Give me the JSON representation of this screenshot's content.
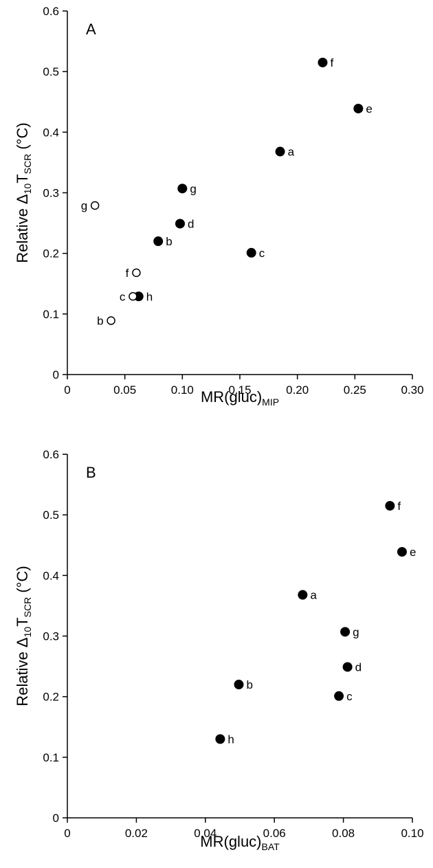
{
  "chart_data": [
    {
      "type": "scatter",
      "panel_label": "A",
      "xlabel": {
        "main": "MR(gluc)",
        "sub": "MIP"
      },
      "ylabel": {
        "pre": "Relative Δ",
        "sub1": "10",
        "mid": "T",
        "sub2": "SCR",
        "post": " (°C)"
      },
      "xlim": [
        0,
        0.3
      ],
      "ylim": [
        0,
        0.6
      ],
      "x_ticks": [
        "0",
        "0.05",
        "0.10",
        "0.15",
        "0.20",
        "0.25",
        "0.30"
      ],
      "y_ticks": [
        "0",
        "0.1",
        "0.2",
        "0.3",
        "0.4",
        "0.5",
        "0.6"
      ],
      "series": [
        {
          "marker": "filled",
          "color": "#000000",
          "points": [
            {
              "label": "f",
              "x": 0.222,
              "y": 0.515
            },
            {
              "label": "e",
              "x": 0.253,
              "y": 0.439
            },
            {
              "label": "a",
              "x": 0.185,
              "y": 0.368
            },
            {
              "label": "g",
              "x": 0.1,
              "y": 0.307
            },
            {
              "label": "d",
              "x": 0.098,
              "y": 0.249
            },
            {
              "label": "b",
              "x": 0.079,
              "y": 0.22
            },
            {
              "label": "c",
              "x": 0.16,
              "y": 0.201
            },
            {
              "label": "h",
              "x": 0.062,
              "y": 0.129
            }
          ]
        },
        {
          "marker": "open",
          "color": "#000000",
          "points": [
            {
              "label": "g",
              "x": 0.024,
              "y": 0.279
            },
            {
              "label": "f",
              "x": 0.06,
              "y": 0.168
            },
            {
              "label": "c",
              "x": 0.057,
              "y": 0.129
            },
            {
              "label": "b",
              "x": 0.038,
              "y": 0.089
            }
          ]
        }
      ]
    },
    {
      "type": "scatter",
      "panel_label": "B",
      "xlabel": {
        "main": "MR(gluc)",
        "sub": "BAT"
      },
      "ylabel": {
        "pre": "Relative Δ",
        "sub1": "10",
        "mid": "T",
        "sub2": "SCR",
        "post": " (°C)"
      },
      "xlim": [
        0,
        0.1
      ],
      "ylim": [
        0,
        0.6
      ],
      "x_ticks": [
        "0",
        "0.02",
        "0.04",
        "0.06",
        "0.08",
        "0.10"
      ],
      "y_ticks": [
        "0",
        "0.1",
        "0.2",
        "0.3",
        "0.4",
        "0.5",
        "0.6"
      ],
      "series": [
        {
          "marker": "filled",
          "color": "#000000",
          "points": [
            {
              "label": "f",
              "x": 0.0935,
              "y": 0.515
            },
            {
              "label": "e",
              "x": 0.097,
              "y": 0.439
            },
            {
              "label": "a",
              "x": 0.0682,
              "y": 0.368
            },
            {
              "label": "g",
              "x": 0.0805,
              "y": 0.307
            },
            {
              "label": "d",
              "x": 0.0812,
              "y": 0.249
            },
            {
              "label": "b",
              "x": 0.0497,
              "y": 0.22
            },
            {
              "label": "c",
              "x": 0.0787,
              "y": 0.201
            },
            {
              "label": "h",
              "x": 0.0443,
              "y": 0.13
            }
          ]
        }
      ]
    }
  ]
}
